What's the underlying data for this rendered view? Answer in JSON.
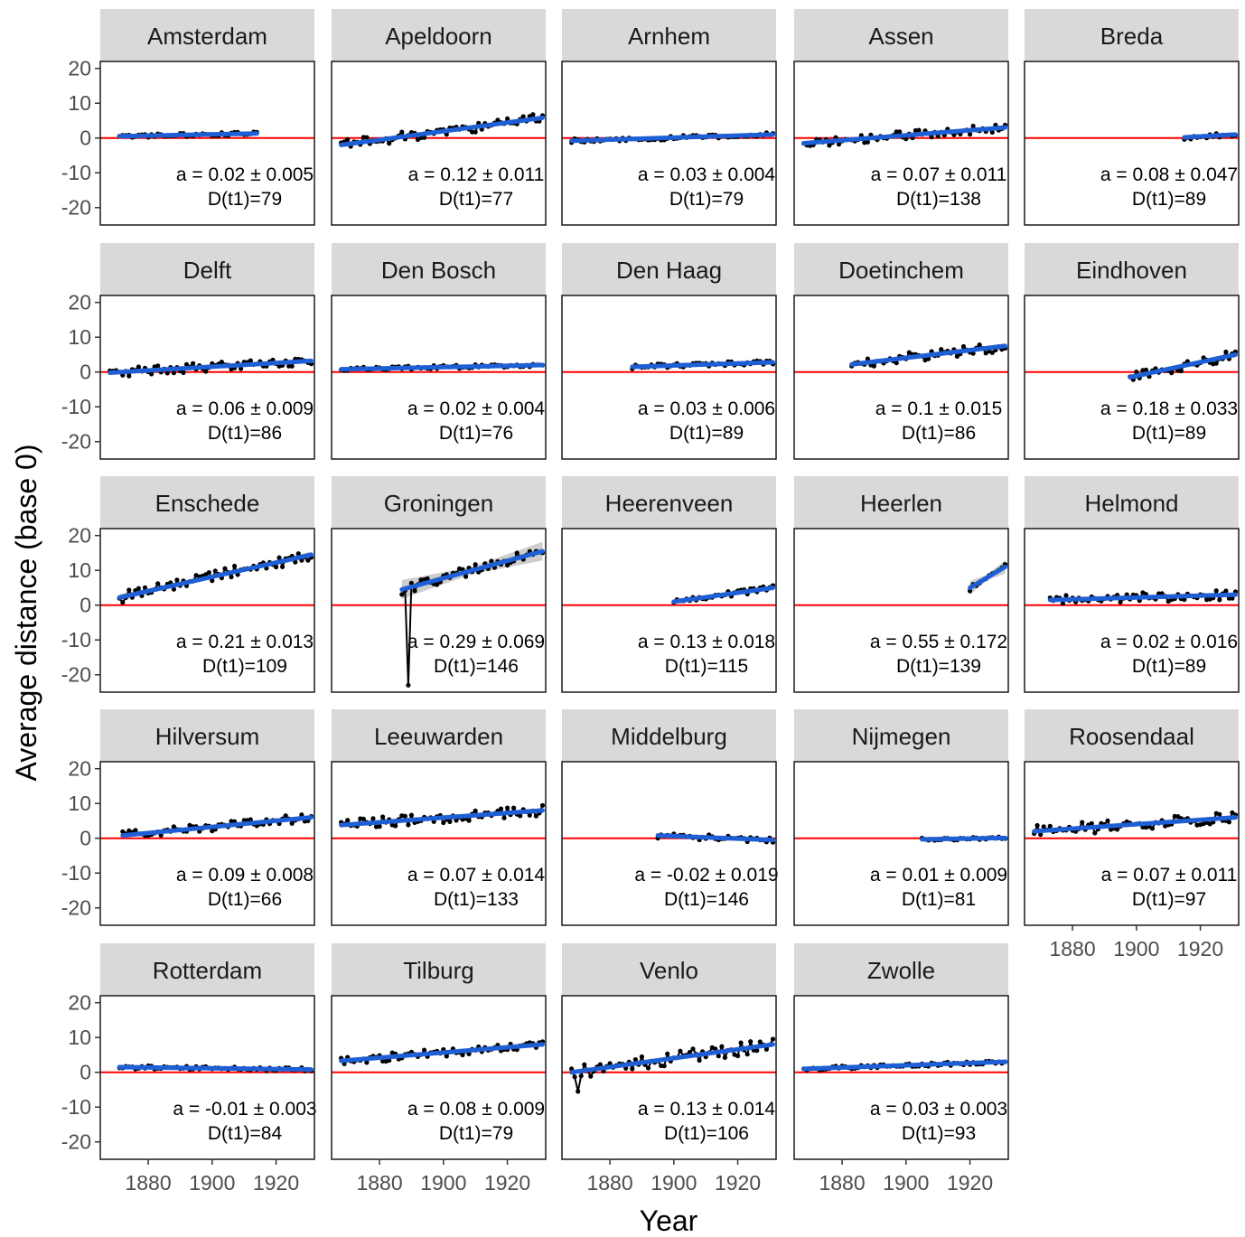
{
  "chart_data": {
    "type": "line",
    "layout": "faceted-grid",
    "xlabel": "Year",
    "ylabel": "Average distance (base 0)",
    "xlim": [
      1865,
      1932
    ],
    "ylim": [
      -25,
      22
    ],
    "x_ticks": [
      1880,
      1900,
      1920
    ],
    "y_ticks": [
      20,
      10,
      0,
      -10,
      -20
    ],
    "reference_line": {
      "y": 0,
      "color": "#ff0000"
    },
    "colors": {
      "data": "#000000",
      "fit": "#1f5fd6",
      "ribbon": "#bdbdbd",
      "reference": "#ff0000",
      "strip": "#d9d9d9"
    },
    "panels": [
      {
        "city": "Amsterdam",
        "annotation": "a = 0.02 ± 0.005",
        "d_t1": "D(t1)=79",
        "x_start": 1871,
        "x_end": 1914,
        "fit": [
          0.5,
          1.3
        ],
        "noise": 0.5,
        "se": 0.2
      },
      {
        "city": "Apeldoorn",
        "annotation": "a = 0.12 ± 0.011",
        "d_t1": "D(t1)=77",
        "x_start": 1868,
        "x_end": 1931,
        "fit": [
          -2.0,
          5.8
        ],
        "noise": 1.5,
        "se": 0.4
      },
      {
        "city": "Arnhem",
        "annotation": "a = 0.03 ± 0.004",
        "d_t1": "D(t1)=79",
        "x_start": 1868,
        "x_end": 1931,
        "fit": [
          -0.8,
          1.0
        ],
        "noise": 0.6,
        "se": 0.2
      },
      {
        "city": "Assen",
        "annotation": "a = 0.07 ± 0.011",
        "d_t1": "D(t1)=138",
        "x_start": 1868,
        "x_end": 1931,
        "fit": [
          -1.5,
          3.0
        ],
        "noise": 1.3,
        "se": 0.4
      },
      {
        "city": "Breda",
        "annotation": "a = 0.08 ± 0.047",
        "d_t1": "D(t1)=89",
        "x_start": 1915,
        "x_end": 1931,
        "fit": [
          0.2,
          1.0
        ],
        "noise": 0.7,
        "se": 0.4
      },
      {
        "city": "Delft",
        "annotation": "a = 0.06 ± 0.009",
        "d_t1": "D(t1)=86",
        "x_start": 1868,
        "x_end": 1931,
        "fit": [
          -0.2,
          3.2
        ],
        "noise": 1.3,
        "se": 0.3
      },
      {
        "city": "Den Bosch",
        "annotation": "a = 0.02 ± 0.004",
        "d_t1": "D(t1)=76",
        "x_start": 1868,
        "x_end": 1931,
        "fit": [
          0.8,
          2.0
        ],
        "noise": 0.5,
        "se": 0.2
      },
      {
        "city": "Den Haag",
        "annotation": "a = 0.03 ± 0.006",
        "d_t1": "D(t1)=89",
        "x_start": 1887,
        "x_end": 1931,
        "fit": [
          1.5,
          2.8
        ],
        "noise": 0.6,
        "se": 0.2
      },
      {
        "city": "Doetinchem",
        "annotation": "a = 0.1 ± 0.015",
        "d_t1": "D(t1)=86",
        "x_start": 1883,
        "x_end": 1931,
        "fit": [
          2.2,
          7.5
        ],
        "noise": 1.5,
        "se": 0.5
      },
      {
        "city": "Eindhoven",
        "annotation": "a = 0.18 ± 0.033",
        "d_t1": "D(t1)=89",
        "x_start": 1898,
        "x_end": 1931,
        "fit": [
          -1.5,
          5.0
        ],
        "noise": 1.4,
        "se": 0.6
      },
      {
        "city": "Enschede",
        "annotation": "a = 0.21 ± 0.013",
        "d_t1": "D(t1)=109",
        "x_start": 1871,
        "x_end": 1931,
        "fit": [
          2.2,
          14.5
        ],
        "noise": 1.7,
        "se": 0.6
      },
      {
        "city": "Groningen",
        "annotation": "a = 0.29 ± 0.069",
        "d_t1": "D(t1)=146",
        "x_start": 1887,
        "x_end": 1931,
        "fit": [
          4.5,
          15.5
        ],
        "noise": 1.5,
        "se": 1.8,
        "dip": [
          1889,
          -23
        ]
      },
      {
        "city": "Heerenveen",
        "annotation": "a = 0.13 ± 0.018",
        "d_t1": "D(t1)=115",
        "x_start": 1900,
        "x_end": 1931,
        "fit": [
          1.0,
          5.0
        ],
        "noise": 0.8,
        "se": 0.4
      },
      {
        "city": "Heerlen",
        "annotation": "a = 0.55 ± 0.172",
        "d_t1": "D(t1)=139",
        "x_start": 1920,
        "x_end": 1931,
        "fit": [
          5.0,
          11.0
        ],
        "noise": 1.0,
        "se": 1.3
      },
      {
        "city": "Helmond",
        "annotation": "a = 0.02 ± 0.016",
        "d_t1": "D(t1)=89",
        "x_start": 1873,
        "x_end": 1931,
        "fit": [
          1.5,
          3.0
        ],
        "noise": 1.4,
        "se": 0.4
      },
      {
        "city": "Hilversum",
        "annotation": "a = 0.09 ± 0.008",
        "d_t1": "D(t1)=66",
        "x_start": 1872,
        "x_end": 1931,
        "fit": [
          0.8,
          6.0
        ],
        "noise": 1.2,
        "se": 0.3
      },
      {
        "city": "Leeuwarden",
        "annotation": "a = 0.07 ± 0.014",
        "d_t1": "D(t1)=133",
        "x_start": 1868,
        "x_end": 1931,
        "fit": [
          3.8,
          8.0
        ],
        "noise": 1.5,
        "se": 0.4
      },
      {
        "city": "Middelburg",
        "annotation": "a = -0.02 ± 0.019",
        "d_t1": "D(t1)=146",
        "x_start": 1895,
        "x_end": 1931,
        "fit": [
          0.8,
          -0.5
        ],
        "noise": 0.8,
        "se": 0.4
      },
      {
        "city": "Nijmegen",
        "annotation": "a = 0.01 ± 0.009",
        "d_t1": "D(t1)=81",
        "x_start": 1905,
        "x_end": 1931,
        "fit": [
          -0.3,
          0.1
        ],
        "noise": 0.4,
        "se": 0.2
      },
      {
        "city": "Roosendaal",
        "annotation": "a = 0.07 ± 0.011",
        "d_t1": "D(t1)=97",
        "x_start": 1868,
        "x_end": 1931,
        "fit": [
          2.0,
          6.0
        ],
        "noise": 1.7,
        "se": 0.4
      },
      {
        "city": "Rotterdam",
        "annotation": "a = -0.01 ± 0.003",
        "d_t1": "D(t1)=84",
        "x_start": 1871,
        "x_end": 1931,
        "fit": [
          1.5,
          0.8
        ],
        "noise": 0.5,
        "se": 0.2
      },
      {
        "city": "Tilburg",
        "annotation": "a = 0.08 ± 0.009",
        "d_t1": "D(t1)=79",
        "x_start": 1868,
        "x_end": 1931,
        "fit": [
          3.3,
          8.0
        ],
        "noise": 1.2,
        "se": 0.3
      },
      {
        "city": "Venlo",
        "annotation": "a = 0.13 ± 0.014",
        "d_t1": "D(t1)=106",
        "x_start": 1868,
        "x_end": 1931,
        "fit": [
          0.0,
          8.0
        ],
        "noise": 1.9,
        "se": 0.4,
        "dip": [
          1870,
          -5.5
        ]
      },
      {
        "city": "Zwolle",
        "annotation": "a = 0.03 ± 0.003",
        "d_t1": "D(t1)=93",
        "x_start": 1868,
        "x_end": 1931,
        "fit": [
          1.0,
          3.0
        ],
        "noise": 0.5,
        "se": 0.2
      }
    ]
  }
}
